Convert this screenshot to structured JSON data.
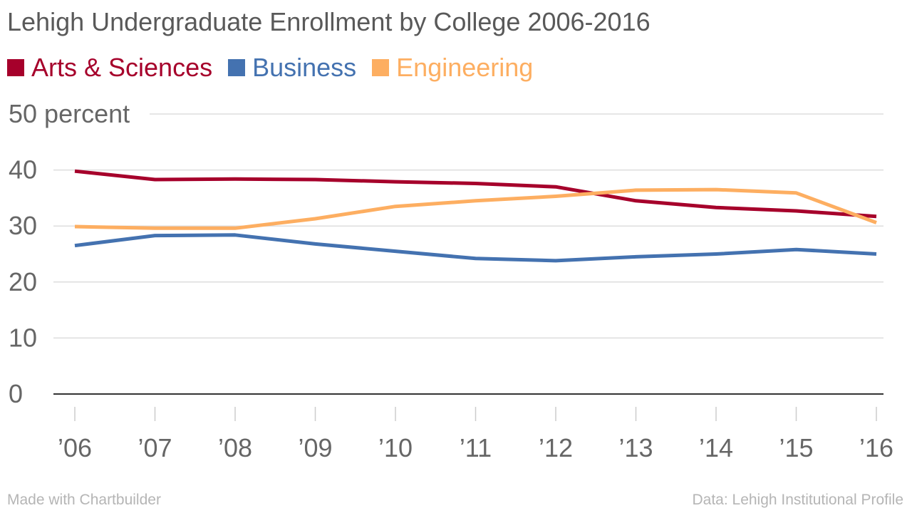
{
  "title": "Lehigh Undergraduate Enrollment by College 2006-2016",
  "footer": {
    "left": "Made with Chartbuilder",
    "right": "Data: Lehigh Institutional Profile"
  },
  "colors": {
    "arts": "#a6002b",
    "business": "#4472b0",
    "engineering": "#fdae61",
    "grid": "#dddddd",
    "axis": "#333333",
    "text": "#666666"
  },
  "chart_data": {
    "type": "line",
    "title": "Lehigh Undergraduate Enrollment by College 2006-2016",
    "categories": [
      "’06",
      "’07",
      "’08",
      "’09",
      "’10",
      "’11",
      "’12",
      "’13",
      "’14",
      "’15",
      "’16"
    ],
    "ylim": [
      0,
      50
    ],
    "yticks": [
      "0",
      "10",
      "20",
      "30",
      "40",
      "50 percent"
    ],
    "grid": true,
    "legend_position": "top-left",
    "series": [
      {
        "name": "Arts & Sciences",
        "color": "#a6002b",
        "values": [
          39.8,
          38.3,
          38.4,
          38.3,
          37.9,
          37.6,
          37.0,
          34.5,
          33.3,
          32.7,
          31.7
        ]
      },
      {
        "name": "Business",
        "color": "#4472b0",
        "values": [
          26.5,
          28.3,
          28.4,
          26.8,
          25.5,
          24.2,
          23.8,
          24.5,
          25.0,
          25.8,
          25.0
        ]
      },
      {
        "name": "Engineering",
        "color": "#fdae61",
        "values": [
          29.9,
          29.6,
          29.6,
          31.3,
          33.5,
          34.5,
          35.3,
          36.4,
          36.5,
          35.9,
          30.6
        ]
      }
    ]
  }
}
